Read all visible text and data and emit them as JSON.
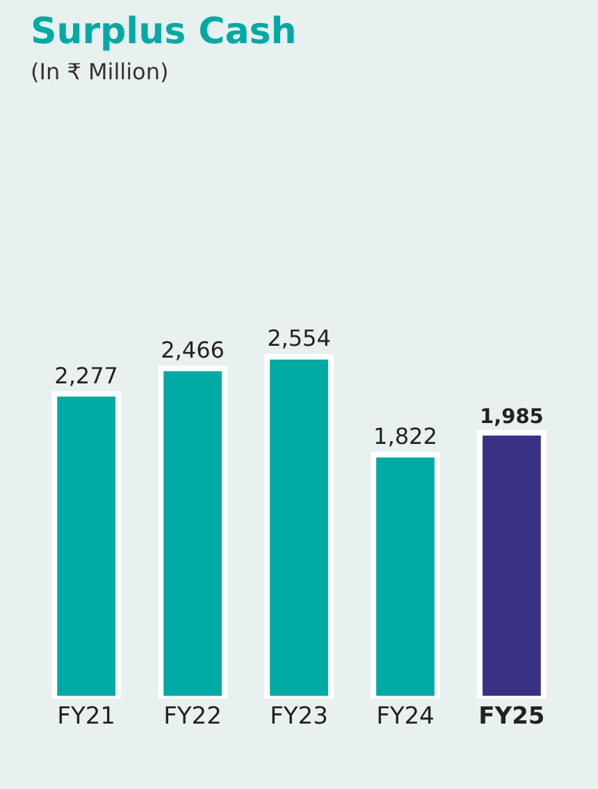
{
  "chart_data": {
    "type": "bar",
    "title": "Surplus Cash",
    "subtitle": "(In ₹ Million)",
    "categories": [
      "FY21",
      "FY22",
      "FY23",
      "FY24",
      "FY25"
    ],
    "values": [
      2277,
      2466,
      2554,
      1822,
      1985
    ],
    "colors": [
      "#00aba5",
      "#00aba5",
      "#00aba5",
      "#00aba5",
      "#3a3185"
    ],
    "value_labels": [
      "2,277",
      "2,466",
      "2,554",
      "1,822",
      "1,985"
    ],
    "grid": false,
    "legend": false
  }
}
